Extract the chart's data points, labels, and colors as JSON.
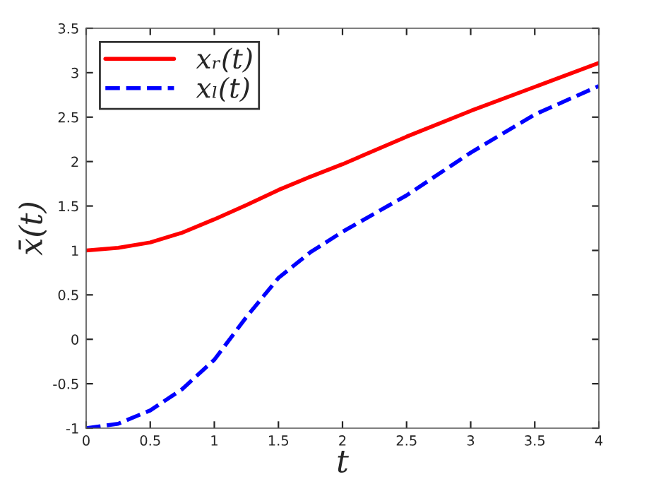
{
  "chart_data": {
    "type": "line",
    "xlabel": "t",
    "ylabel": "x̄(t)",
    "x": [
      0,
      0.25,
      0.5,
      0.75,
      1,
      1.25,
      1.5,
      1.75,
      2,
      2.5,
      3,
      3.5,
      4
    ],
    "series": [
      {
        "name": "xᵣ(t)",
        "color": "#ff0000",
        "line_style": "solid",
        "values": [
          1.0,
          1.03,
          1.09,
          1.2,
          1.35,
          1.51,
          1.68,
          1.83,
          1.97,
          2.28,
          2.57,
          2.84,
          3.11
        ]
      },
      {
        "name": "xₗ(t)",
        "color": "#0000ff",
        "line_style": "dashed",
        "values": [
          -1.0,
          -0.95,
          -0.8,
          -0.56,
          -0.23,
          0.25,
          0.69,
          0.98,
          1.21,
          1.62,
          2.1,
          2.53,
          2.85
        ]
      }
    ],
    "xlim": [
      0,
      4
    ],
    "xticks": [
      0,
      0.5,
      1,
      1.5,
      2,
      2.5,
      3,
      3.5,
      4
    ],
    "ylim": [
      -1,
      3.5
    ],
    "yticks": [
      -1,
      -0.5,
      0,
      0.5,
      1,
      1.5,
      2,
      2.5,
      3,
      3.5
    ],
    "grid": false,
    "legend": "top left",
    "marker": "none"
  }
}
